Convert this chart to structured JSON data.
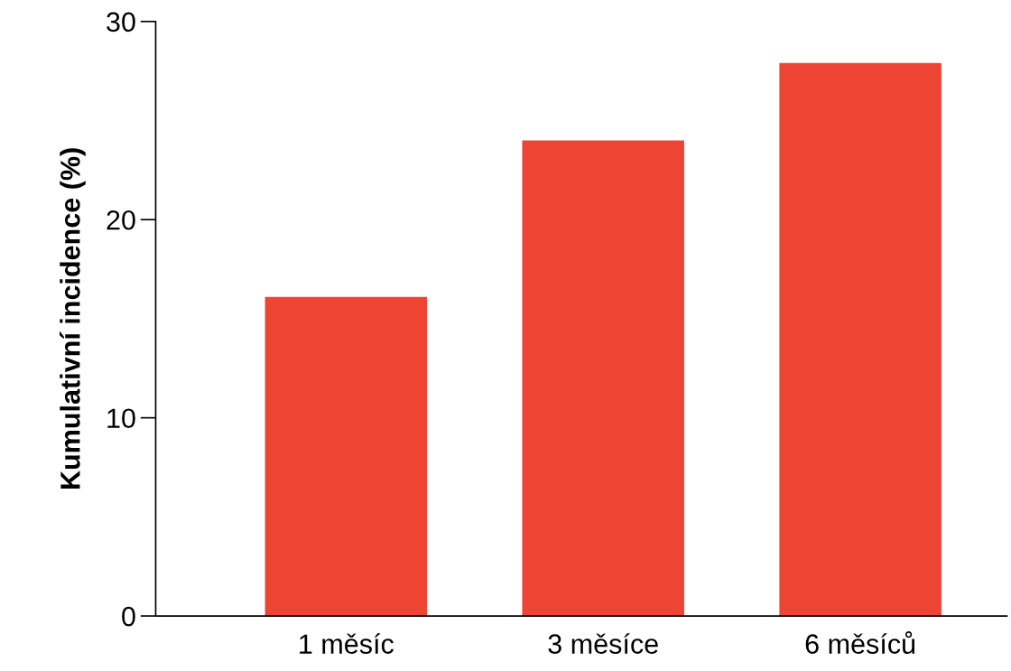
{
  "chart_data": {
    "type": "bar",
    "ylabel": "Kumulativní incidence (%)",
    "categories": [
      "1 měsíc",
      "3 měsíce",
      "6 měsíců"
    ],
    "values": [
      16.1,
      24.0,
      27.9
    ],
    "color": "#ee4433",
    "ylim": [
      0,
      30
    ],
    "yticks": [
      0,
      10,
      20,
      30
    ],
    "grid": false,
    "legend": false
  }
}
